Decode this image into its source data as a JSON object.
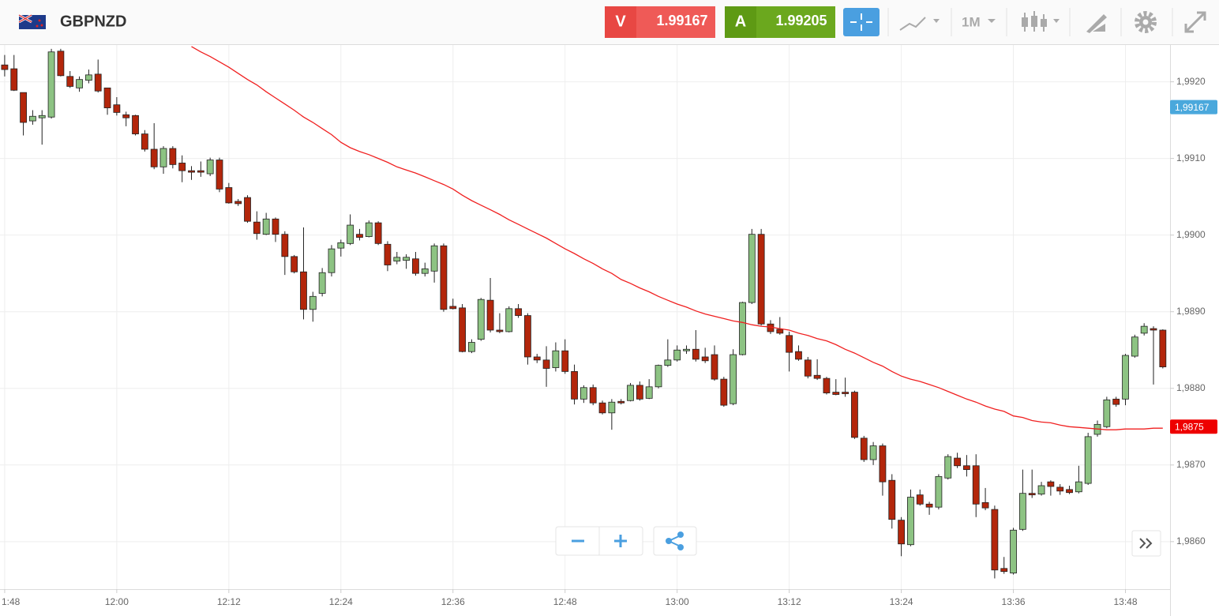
{
  "header": {
    "symbol": "GBPNZD",
    "sell": {
      "label": "V",
      "price": "1.99167"
    },
    "buy": {
      "label": "A",
      "price": "1.99205"
    },
    "timeframe": "1M"
  },
  "chart_data": {
    "type": "candlestick",
    "categories": [
      "1:48",
      null,
      null,
      null,
      null,
      null,
      null,
      null,
      null,
      null,
      null,
      null,
      "12:00",
      null,
      null,
      null,
      null,
      null,
      null,
      null,
      null,
      null,
      null,
      null,
      "12:12",
      null,
      null,
      null,
      null,
      null,
      null,
      null,
      null,
      null,
      null,
      null,
      "12:24",
      null,
      null,
      null,
      null,
      null,
      null,
      null,
      null,
      null,
      null,
      null,
      "12:36",
      null,
      null,
      null,
      null,
      null,
      null,
      null,
      null,
      null,
      null,
      null,
      "12:48",
      null,
      null,
      null,
      null,
      null,
      null,
      null,
      null,
      null,
      null,
      null,
      "13:00",
      null,
      null,
      null,
      null,
      null,
      null,
      null,
      null,
      null,
      null,
      null,
      "13:12",
      null,
      null,
      null,
      null,
      null,
      null,
      null,
      null,
      null,
      null,
      null,
      "13:24",
      null,
      null,
      null,
      null,
      null,
      null,
      null,
      null,
      null,
      null,
      null,
      "13:36",
      null,
      null,
      null,
      null,
      null,
      null,
      null,
      null,
      null,
      null,
      null,
      "13:48",
      null,
      null,
      null,
      null
    ],
    "open": [
      1.99222,
      1.99217,
      1.99186,
      1.99149,
      1.99153,
      1.99154,
      1.9924,
      1.99207,
      1.99192,
      1.99202,
      1.9921,
      1.99192,
      1.9917,
      1.99157,
      1.99156,
      1.99132,
      1.99112,
      1.99089,
      1.99113,
      1.99094,
      1.99084,
      1.99084,
      1.9908,
      1.99098,
      1.99062,
      1.99044,
      1.99049,
      1.99017,
      1.99001,
      1.99021,
      1.99001,
      1.98972,
      1.98952,
      1.98903,
      1.98924,
      1.98951,
      1.98983,
      1.98989,
      1.99001,
      1.98998,
      1.99016,
      1.98988,
      1.98966,
      1.98967,
      1.98969,
      1.9895,
      1.98953,
      1.98986,
      1.98907,
      1.98905,
      1.98848,
      1.98864,
      1.98915,
      1.98876,
      1.98874,
      1.98904,
      1.98895,
      1.98841,
      1.98837,
      1.98827,
      1.98849,
      1.98822,
      1.98786,
      1.98801,
      1.98781,
      1.98768,
      1.98783,
      1.98784,
      1.98804,
      1.98787,
      1.98802,
      1.9883,
      1.98837,
      1.98849,
      1.98851,
      1.98841,
      1.98844,
      1.98812,
      1.9878,
      1.98844,
      1.98912,
      1.99001,
      1.98884,
      1.98877,
      1.98869,
      1.98848,
      1.98837,
      1.98817,
      1.98813,
      1.98795,
      1.98795,
      1.98795,
      1.98735,
      1.98707,
      1.98725,
      1.9868,
      1.98628,
      1.98596,
      1.98661,
      1.98649,
      1.98645,
      1.98683,
      1.98709,
      1.98699,
      1.98699,
      1.98651,
      1.98642,
      1.98565,
      1.98559,
      1.98616,
      1.98663,
      1.98662,
      1.98678,
      1.98671,
      1.98668,
      1.98665,
      1.98676,
      1.9874,
      1.9875,
      1.98786,
      1.98786,
      1.98842,
      1.98872,
      1.98878,
      1.98876
    ],
    "high": [
      1.99235,
      1.99235,
      1.99186,
      1.99163,
      1.99163,
      1.99243,
      1.99243,
      1.99214,
      1.99207,
      1.99216,
      1.99229,
      1.99192,
      1.9918,
      1.99161,
      1.99157,
      1.99137,
      1.99146,
      1.99116,
      1.99116,
      1.99104,
      1.9909,
      1.99096,
      1.99101,
      1.99101,
      1.99068,
      1.99047,
      1.99052,
      1.99031,
      1.99029,
      1.99023,
      1.99005,
      1.98974,
      1.9901,
      1.98926,
      1.98957,
      1.98987,
      1.98994,
      1.99027,
      1.99008,
      1.99019,
      1.99018,
      1.98992,
      1.98978,
      1.98975,
      1.98978,
      1.98964,
      1.98989,
      1.98989,
      1.98917,
      1.9891,
      1.98864,
      1.98918,
      1.98944,
      1.98898,
      1.98907,
      1.9891,
      1.98898,
      1.98845,
      1.98855,
      1.9886,
      1.98864,
      1.98831,
      1.98804,
      1.98805,
      1.98784,
      1.98786,
      1.98786,
      1.98807,
      1.98809,
      1.98812,
      1.98831,
      1.98864,
      1.98856,
      1.98856,
      1.98876,
      1.98853,
      1.98856,
      1.98815,
      1.98851,
      1.98913,
      1.99008,
      1.99008,
      1.98889,
      1.98893,
      1.98874,
      1.98856,
      1.98841,
      1.98838,
      1.98815,
      1.98812,
      1.98814,
      1.98797,
      1.98738,
      1.9873,
      1.98728,
      1.98688,
      1.98632,
      1.98668,
      1.98668,
      1.98652,
      1.98688,
      1.98714,
      1.98716,
      1.98713,
      1.98714,
      1.9867,
      1.98647,
      1.9858,
      1.98618,
      1.98694,
      1.98694,
      1.98678,
      1.9868,
      1.98675,
      1.98673,
      1.98699,
      1.98742,
      1.98758,
      1.98789,
      1.98789,
      1.98845,
      1.9887,
      1.98885,
      1.98881,
      1.98877
    ],
    "low": [
      1.99207,
      1.99188,
      1.9913,
      1.99144,
      1.99118,
      1.99152,
      1.99207,
      1.99192,
      1.99187,
      1.99198,
      1.99186,
      1.99157,
      1.99156,
      1.99142,
      1.9913,
      1.99109,
      1.99086,
      1.9908,
      1.99087,
      1.99069,
      1.99072,
      1.99076,
      1.99077,
      1.99056,
      1.99041,
      1.99038,
      1.99016,
      1.98994,
      1.99,
      1.98991,
      1.98948,
      1.9895,
      1.9889,
      1.98887,
      1.9892,
      1.98946,
      1.98972,
      1.98987,
      1.98993,
      1.98997,
      1.98987,
      1.98953,
      1.98962,
      1.98956,
      1.98947,
      1.98946,
      1.98938,
      1.989,
      1.98903,
      1.98847,
      1.98846,
      1.98862,
      1.98873,
      1.98872,
      1.98873,
      1.98892,
      1.98831,
      1.98833,
      1.98802,
      1.98822,
      1.98819,
      1.98779,
      1.98781,
      1.98778,
      1.98766,
      1.98746,
      1.98779,
      1.98783,
      1.98784,
      1.98786,
      1.988,
      1.98828,
      1.98835,
      1.98845,
      1.98835,
      1.98833,
      1.9881,
      1.98776,
      1.98778,
      1.98843,
      1.9891,
      1.98882,
      1.98871,
      1.9887,
      1.98822,
      1.98836,
      1.98813,
      1.98811,
      1.98792,
      1.98791,
      1.98789,
      1.98734,
      1.98704,
      1.987,
      1.9866,
      1.98617,
      1.98581,
      1.98594,
      1.98647,
      1.98635,
      1.98642,
      1.98681,
      1.98696,
      1.98685,
      1.98632,
      1.98641,
      1.98552,
      1.98558,
      1.98557,
      1.98614,
      1.98657,
      1.9866,
      1.9866,
      1.98661,
      1.98662,
      1.98663,
      1.98674,
      1.98737,
      1.98748,
      1.98776,
      1.98778,
      1.9884,
      1.98869,
      1.98805,
      1.98826
    ],
    "close": [
      1.99216,
      1.99189,
      1.99147,
      1.99155,
      1.99156,
      1.99239,
      1.99208,
      1.99194,
      1.99203,
      1.99209,
      1.99188,
      1.99166,
      1.9916,
      1.99153,
      1.99132,
      1.99112,
      1.99089,
      1.99113,
      1.99092,
      1.99084,
      1.99082,
      1.99082,
      1.99098,
      1.9906,
      1.99042,
      1.99041,
      1.99018,
      1.99002,
      1.99021,
      1.99001,
      1.98972,
      1.98952,
      1.98903,
      1.9892,
      1.98951,
      1.98982,
      1.9899,
      1.99013,
      1.98997,
      1.99016,
      1.98989,
      1.98961,
      1.98971,
      1.98971,
      1.9895,
      1.98956,
      1.98986,
      1.98903,
      1.98904,
      1.98848,
      1.9886,
      1.98916,
      1.98876,
      1.98874,
      1.98904,
      1.98895,
      1.98841,
      1.98837,
      1.98826,
      1.98849,
      1.98822,
      1.98786,
      1.98801,
      1.98781,
      1.98768,
      1.98782,
      1.98781,
      1.98804,
      1.98786,
      1.98802,
      1.9883,
      1.98837,
      1.9885,
      1.98851,
      1.98838,
      1.98836,
      1.98812,
      1.98778,
      1.98844,
      1.98912,
      1.99001,
      1.98884,
      1.98874,
      1.98872,
      1.98847,
      1.98838,
      1.98816,
      1.98813,
      1.98794,
      1.98792,
      1.98793,
      1.98736,
      1.98707,
      1.98725,
      1.98678,
      1.98629,
      1.98597,
      1.98658,
      1.98649,
      1.98645,
      1.98685,
      1.98711,
      1.98699,
      1.98694,
      1.98649,
      1.98644,
      1.98563,
      1.98561,
      1.98615,
      1.98663,
      1.98661,
      1.98673,
      1.98672,
      1.98666,
      1.98664,
      1.98678,
      1.98737,
      1.98753,
      1.98785,
      1.98779,
      1.98843,
      1.98867,
      1.98881,
      1.98876,
      1.98828
    ],
    "up_color": "#8dc383",
    "down_color": "#b3260b",
    "ma": [
      null,
      null,
      null,
      null,
      null,
      null,
      null,
      null,
      null,
      null,
      null,
      null,
      null,
      null,
      null,
      null,
      null,
      null,
      null,
      null,
      1.99246,
      1.99239,
      1.99233,
      1.99226,
      1.99219,
      1.99211,
      1.99203,
      1.99196,
      1.99187,
      1.99179,
      1.99171,
      1.99163,
      1.99154,
      1.99147,
      1.99139,
      1.99131,
      1.99121,
      1.99114,
      1.99109,
      1.99105,
      1.991,
      1.99095,
      1.99089,
      1.99085,
      1.99081,
      1.99076,
      1.99071,
      1.99066,
      1.9906,
      1.99052,
      1.99045,
      1.99039,
      1.99033,
      1.99027,
      1.9902,
      1.99014,
      1.99008,
      1.99002,
      1.98996,
      1.98989,
      1.98982,
      1.98976,
      1.98969,
      1.98963,
      1.98956,
      1.9895,
      1.98942,
      1.98937,
      1.98931,
      1.98926,
      1.9892,
      1.98915,
      1.9891,
      1.98906,
      1.98901,
      1.98897,
      1.98894,
      1.98891,
      1.98888,
      1.98886,
      1.98883,
      1.98881,
      1.9888,
      1.98878,
      1.98876,
      1.98872,
      1.98869,
      1.98865,
      1.98862,
      1.98857,
      1.98851,
      1.98846,
      1.9884,
      1.98834,
      1.98829,
      1.98822,
      1.98816,
      1.98812,
      1.98809,
      1.98805,
      1.98801,
      1.98796,
      1.98791,
      1.98786,
      1.98782,
      1.98777,
      1.98773,
      1.9877,
      1.98764,
      1.98762,
      1.98758,
      1.98756,
      1.98755,
      1.98752,
      1.9875,
      1.98749,
      1.98748,
      1.98747,
      1.98746,
      1.98746,
      1.98747,
      1.98747,
      1.98747,
      1.98748,
      1.98748
    ],
    "ma_color": "#f02020",
    "ylim": [
      1.98538,
      1.99248
    ],
    "yticks": [
      {
        "value": 1.986,
        "label": "1,9860"
      },
      {
        "value": 1.987,
        "label": "1,9870"
      },
      {
        "value": 1.988,
        "label": "1,9880"
      },
      {
        "value": 1.989,
        "label": "1,9890"
      },
      {
        "value": 1.99,
        "label": "1,9900"
      },
      {
        "value": 1.991,
        "label": "1,9910"
      },
      {
        "value": 1.992,
        "label": "1,9920"
      }
    ],
    "price_markers": [
      {
        "value": 1.99167,
        "label": "1,99167",
        "color": "#4aa8dc"
      },
      {
        "value": 1.9875,
        "label": "1,9875",
        "color": "#ee0000"
      }
    ],
    "grid": true
  }
}
